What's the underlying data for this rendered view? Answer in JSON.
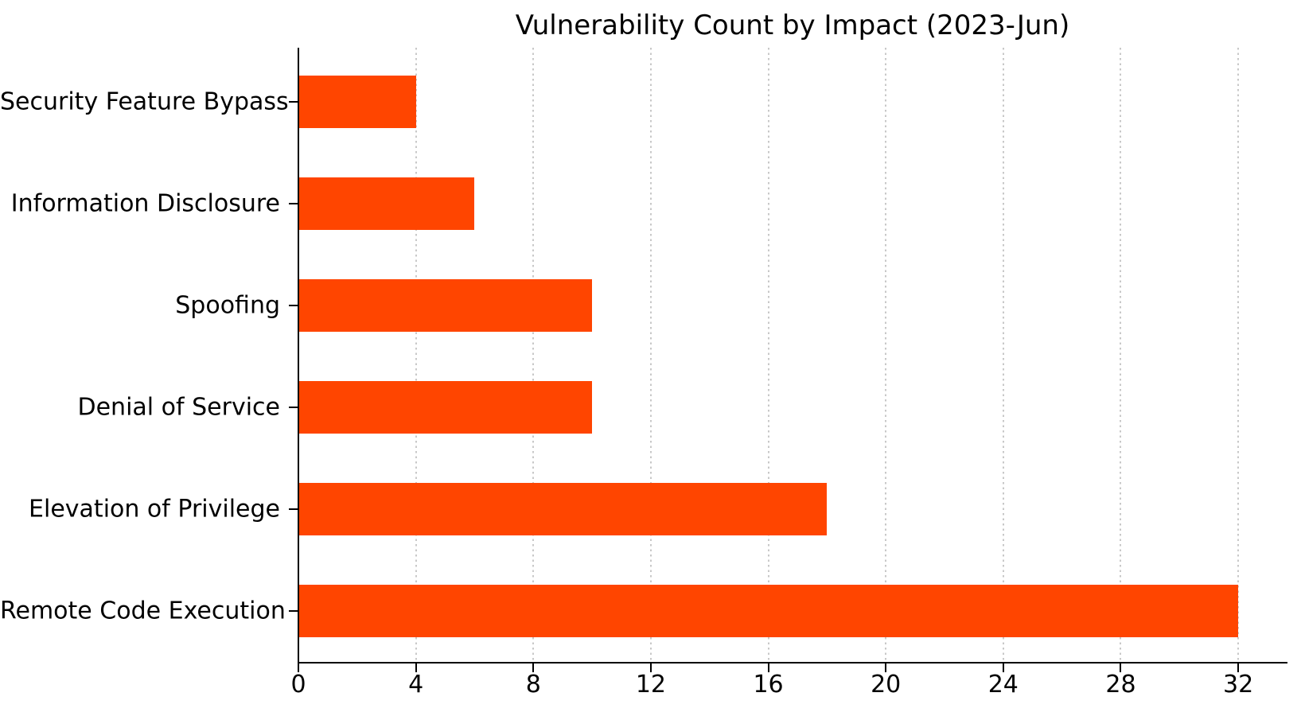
{
  "chart_data": {
    "type": "bar",
    "orientation": "horizontal",
    "title": "Vulnerability Count by Impact (2023-Jun)",
    "categories": [
      "Security Feature Bypass",
      "Information Disclosure",
      "Spoofing",
      "Denial of Service",
      "Elevation of Privilege",
      "Remote Code Execution"
    ],
    "values": [
      4,
      6,
      10,
      10,
      18,
      32
    ],
    "xlabel": "",
    "ylabel": "",
    "xticks": [
      0,
      4,
      8,
      12,
      16,
      20,
      24,
      28,
      32
    ],
    "xlim": [
      0,
      33.65
    ],
    "grid": "vertical-dotted",
    "legend": null,
    "colors": {
      "bar": "#ff4500",
      "axis": "#000000",
      "text": "#000000",
      "gridline": "#c8c8c8",
      "background": "#ffffff"
    }
  }
}
